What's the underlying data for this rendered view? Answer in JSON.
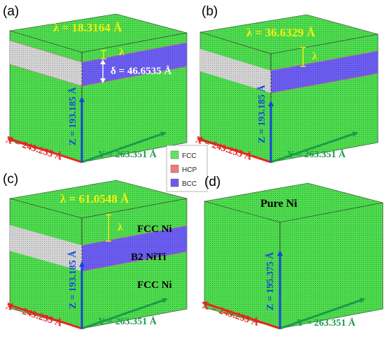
{
  "legend": {
    "items": [
      {
        "label": "FCC",
        "color": "#5ce65c"
      },
      {
        "label": "HCP",
        "color": "#f07a7a"
      },
      {
        "label": "BCC",
        "color": "#6a5ce6"
      }
    ]
  },
  "colors": {
    "fcc": "#4fdc4f",
    "bcc": "#6c5ff0",
    "grey": "#cfcfcf",
    "lambda_text": "#f2f20a",
    "x_axis": "#e8241e",
    "y_axis": "#1a9a4a",
    "z_axis": "#1646d8"
  },
  "panels": {
    "a": {
      "label": "(a)",
      "lambda": "λ = 18.3164 Å",
      "lambda_symbol": "λ",
      "delta": "δ = 46.6535 Å",
      "x_axis": "X = 249.255 Å",
      "y_axis": "Y = 263.351 Å",
      "z_axis": "Z = 193.185 Å"
    },
    "b": {
      "label": "(b)",
      "lambda": "λ = 36.6329 Å",
      "lambda_symbol": "λ",
      "x_axis": "X = 249.255 Å",
      "y_axis": "Y = 263.351 Å",
      "z_axis": "Z = 193.185 Å"
    },
    "c": {
      "label": "(c)",
      "lambda": "λ = 61.0548 Å",
      "lambda_symbol": "λ",
      "layer_top": "FCC  Ni",
      "layer_mid": "B2  NiTi",
      "layer_bottom": "FCC  Ni",
      "x_axis": "X = 249.255 Å",
      "y_axis": "Y = 263.351 Å",
      "z_axis": "Z = 193.185 Å"
    },
    "d": {
      "label": "(d)",
      "title": "Pure Ni",
      "x_axis": "X = 249.255 Å",
      "y_axis": "Y = 263.351 Å",
      "z_axis": "Z = 195.375 Å"
    }
  }
}
